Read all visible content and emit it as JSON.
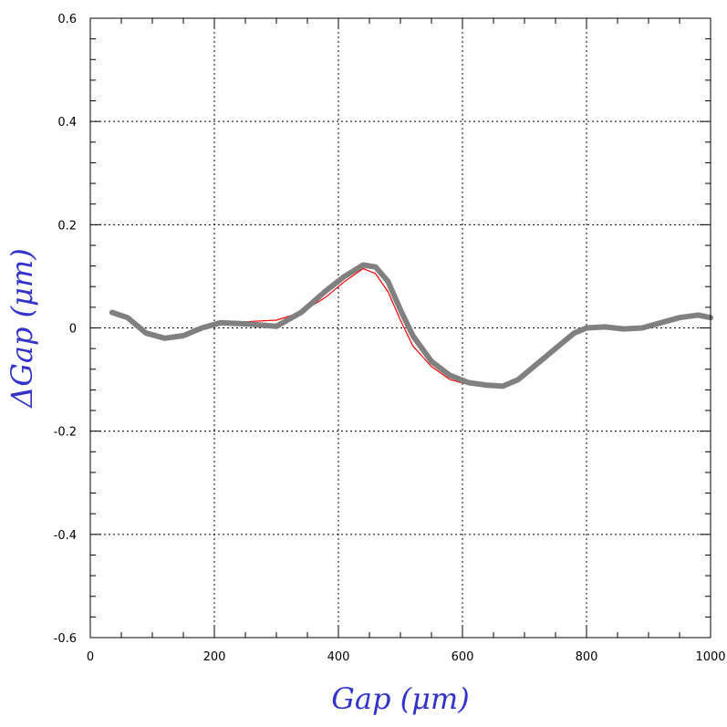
{
  "chart_data": {
    "type": "line",
    "title": "",
    "xlabel": "Gap  (μm)",
    "ylabel": "ΔGap  (μm)",
    "xlim": [
      0,
      1000
    ],
    "ylim": [
      -0.6,
      0.6
    ],
    "x_ticks": [
      "0",
      "200",
      "400",
      "600",
      "800",
      "1000"
    ],
    "y_ticks": [
      "0.6",
      "0.4",
      "0.2",
      "0",
      "-0.2",
      "-0.4",
      "-0.6"
    ],
    "grid": true,
    "colors": {
      "axis_title": "#3333cc",
      "grid": "#000000"
    },
    "series": [
      {
        "color": "#0000ff",
        "x": [
          35,
          60,
          90,
          120,
          150,
          180,
          210,
          250,
          300,
          340,
          380,
          410,
          440,
          460,
          480,
          500,
          520,
          550,
          580,
          610,
          640,
          665,
          690,
          720,
          750,
          780,
          800,
          830,
          860,
          890,
          920,
          950,
          980,
          1000
        ],
        "y": [
          0.03,
          0.02,
          -0.01,
          -0.02,
          -0.015,
          0.0,
          0.01,
          0.008,
          0.002,
          0.03,
          0.075,
          0.1,
          0.12,
          0.12,
          0.095,
          0.04,
          -0.01,
          -0.06,
          -0.09,
          -0.105,
          -0.11,
          -0.113,
          -0.1,
          -0.07,
          -0.04,
          -0.01,
          0.0,
          0.002,
          -0.002,
          0.0,
          0.01,
          0.02,
          0.025,
          0.02
        ]
      },
      {
        "color": "#ff0000",
        "x": [
          35,
          60,
          90,
          120,
          150,
          180,
          210,
          250,
          300,
          340,
          380,
          410,
          440,
          460,
          480,
          500,
          520,
          550,
          580,
          610,
          640,
          665,
          690,
          720,
          750,
          780,
          800,
          830,
          860,
          890,
          920,
          950,
          980,
          1000
        ],
        "y": [
          0.03,
          0.02,
          -0.01,
          -0.02,
          -0.015,
          0.0,
          0.01,
          0.012,
          0.015,
          0.03,
          0.06,
          0.09,
          0.115,
          0.105,
          0.07,
          0.015,
          -0.035,
          -0.075,
          -0.1,
          -0.11,
          -0.112,
          -0.113,
          -0.1,
          -0.07,
          -0.04,
          -0.01,
          0.0,
          0.002,
          -0.002,
          0.0,
          0.01,
          0.02,
          0.025,
          0.02
        ]
      },
      {
        "color": "#00aa00",
        "x": [
          35,
          60,
          90,
          120,
          150,
          180,
          210,
          250,
          300,
          340,
          380,
          410,
          440,
          460,
          480,
          500,
          520,
          550,
          580,
          610,
          640,
          665,
          690,
          720,
          750,
          780,
          800,
          830,
          860,
          890,
          920,
          950,
          980,
          1000
        ],
        "y": [
          0.03,
          0.02,
          -0.01,
          -0.02,
          -0.015,
          0.0,
          0.01,
          0.008,
          0.003,
          0.03,
          0.072,
          0.1,
          0.122,
          0.118,
          0.09,
          0.035,
          -0.015,
          -0.065,
          -0.092,
          -0.106,
          -0.111,
          -0.113,
          -0.1,
          -0.07,
          -0.04,
          -0.01,
          0.0,
          0.002,
          -0.002,
          0.0,
          0.01,
          0.02,
          0.025,
          0.02
        ]
      },
      {
        "color": "#808080",
        "x": [
          35,
          60,
          90,
          120,
          150,
          180,
          210,
          250,
          300,
          340,
          380,
          410,
          440,
          460,
          480,
          500,
          520,
          550,
          580,
          610,
          640,
          665,
          690,
          720,
          750,
          780,
          800,
          830,
          860,
          890,
          920,
          950,
          980,
          1000
        ],
        "y": [
          0.03,
          0.02,
          -0.01,
          -0.02,
          -0.015,
          0.0,
          0.01,
          0.008,
          0.003,
          0.03,
          0.072,
          0.1,
          0.122,
          0.118,
          0.09,
          0.035,
          -0.015,
          -0.065,
          -0.092,
          -0.106,
          -0.111,
          -0.113,
          -0.1,
          -0.07,
          -0.04,
          -0.01,
          0.0,
          0.002,
          -0.002,
          0.0,
          0.01,
          0.02,
          0.025,
          0.02
        ]
      }
    ]
  }
}
